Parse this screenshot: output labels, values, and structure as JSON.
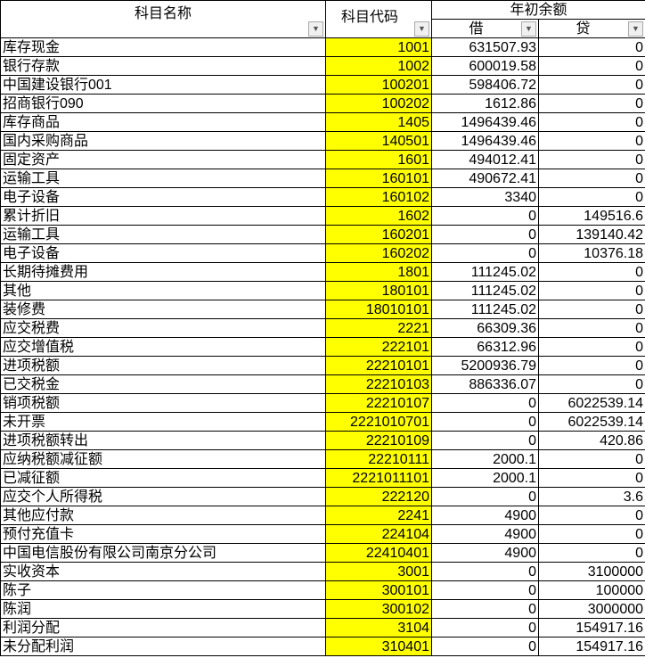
{
  "header": {
    "name_col": "科目名称",
    "code_col": "科目代码",
    "opening_balance": "年初余额",
    "debit": "借",
    "credit": "贷",
    "filter_icon": "dropdown-arrow"
  },
  "colors": {
    "code_highlight": "#ffff00"
  },
  "rows": [
    {
      "name": "库存现金",
      "code": "1001",
      "debit": "631507.93",
      "credit": "0"
    },
    {
      "name": "银行存款",
      "code": "1002",
      "debit": "600019.58",
      "credit": "0"
    },
    {
      "name": "中国建设银行001",
      "code": "100201",
      "debit": "598406.72",
      "credit": "0"
    },
    {
      "name": "招商银行090",
      "code": "100202",
      "debit": "1612.86",
      "credit": "0"
    },
    {
      "name": "库存商品",
      "code": "1405",
      "debit": "1496439.46",
      "credit": "0"
    },
    {
      "name": "国内采购商品",
      "code": "140501",
      "debit": "1496439.46",
      "credit": "0"
    },
    {
      "name": "固定资产",
      "code": "1601",
      "debit": "494012.41",
      "credit": "0"
    },
    {
      "name": "运输工具",
      "code": "160101",
      "debit": "490672.41",
      "credit": "0"
    },
    {
      "name": "电子设备",
      "code": "160102",
      "debit": "3340",
      "credit": "0"
    },
    {
      "name": "累计折旧",
      "code": "1602",
      "debit": "0",
      "credit": "149516.6"
    },
    {
      "name": "运输工具",
      "code": "160201",
      "debit": "0",
      "credit": "139140.42"
    },
    {
      "name": "电子设备",
      "code": "160202",
      "debit": "0",
      "credit": "10376.18"
    },
    {
      "name": "长期待摊费用",
      "code": "1801",
      "debit": "111245.02",
      "credit": "0"
    },
    {
      "name": "其他",
      "code": "180101",
      "debit": "111245.02",
      "credit": "0"
    },
    {
      "name": "装修费",
      "code": "18010101",
      "debit": "111245.02",
      "credit": "0"
    },
    {
      "name": "应交税费",
      "code": "2221",
      "debit": "66309.36",
      "credit": "0"
    },
    {
      "name": "应交增值税",
      "code": "222101",
      "debit": "66312.96",
      "credit": "0"
    },
    {
      "name": "进项税额",
      "code": "22210101",
      "debit": "5200936.79",
      "credit": "0"
    },
    {
      "name": "已交税金",
      "code": "22210103",
      "debit": "886336.07",
      "credit": "0"
    },
    {
      "name": "销项税额",
      "code": "22210107",
      "debit": "0",
      "credit": "6022539.14"
    },
    {
      "name": "未开票",
      "code": "2221010701",
      "debit": "0",
      "credit": "6022539.14"
    },
    {
      "name": "进项税额转出",
      "code": "22210109",
      "debit": "0",
      "credit": "420.86"
    },
    {
      "name": "应纳税额减征额",
      "code": "22210111",
      "debit": "2000.1",
      "credit": "0"
    },
    {
      "name": "已减征额",
      "code": "2221011101",
      "debit": "2000.1",
      "credit": "0"
    },
    {
      "name": "应交个人所得税",
      "code": "222120",
      "debit": "0",
      "credit": "3.6"
    },
    {
      "name": "其他应付款",
      "code": "2241",
      "debit": "4900",
      "credit": "0"
    },
    {
      "name": "预付充值卡",
      "code": "224104",
      "debit": "4900",
      "credit": "0"
    },
    {
      "name": "中国电信股份有限公司南京分公司",
      "code": "22410401",
      "debit": "4900",
      "credit": "0"
    },
    {
      "name": "实收资本",
      "code": "3001",
      "debit": "0",
      "credit": "3100000"
    },
    {
      "name": "陈子",
      "code": "300101",
      "debit": "0",
      "credit": "100000"
    },
    {
      "name": "陈润",
      "code": "300102",
      "debit": "0",
      "credit": "3000000"
    },
    {
      "name": "利润分配",
      "code": "3104",
      "debit": "0",
      "credit": "154917.16"
    },
    {
      "name": "未分配利润",
      "code": "310401",
      "debit": "0",
      "credit": "154917.16"
    }
  ]
}
